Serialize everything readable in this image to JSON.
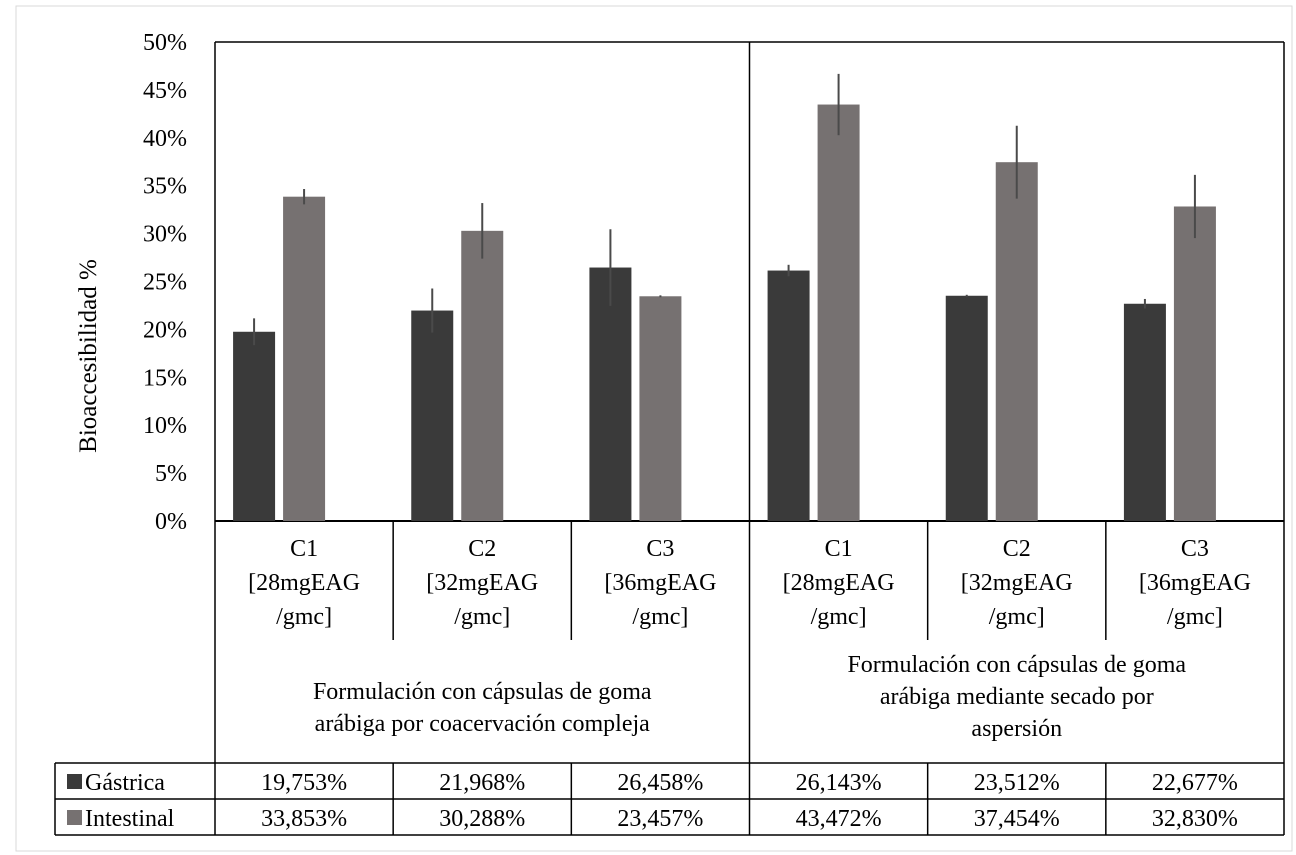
{
  "chart_data": {
    "type": "bar",
    "ylabel": "Bioaccesibilidad %",
    "ylim": [
      0,
      50
    ],
    "yticks": [
      "0%",
      "5%",
      "10%",
      "15%",
      "20%",
      "25%",
      "30%",
      "35%",
      "40%",
      "45%",
      "50%"
    ],
    "grid": false,
    "categories": [
      {
        "line1": "C1",
        "line2": "[28mgEAG",
        "line3": "/gmc]"
      },
      {
        "line1": "C2",
        "line2": "[32mgEAG",
        "line3": "/gmc]"
      },
      {
        "line1": "C3",
        "line2": "[36mgEAG",
        "line3": "/gmc]"
      },
      {
        "line1": "C1",
        "line2": "[28mgEAG",
        "line3": "/gmc]"
      },
      {
        "line1": "C2",
        "line2": "[32mgEAG",
        "line3": "/gmc]"
      },
      {
        "line1": "C3",
        "line2": "[36mgEAG",
        "line3": "/gmc]"
      }
    ],
    "groups": [
      {
        "lines": [
          "Formulación con cápsulas de goma",
          "arábiga por coacervación compleja"
        ]
      },
      {
        "lines": [
          "Formulación con cápsulas de goma",
          "arábiga mediante secado por",
          "aspersión"
        ]
      }
    ],
    "series": [
      {
        "name": "Gástrica",
        "color": "#3a3a3a",
        "values": [
          19.753,
          21.968,
          26.458,
          26.143,
          23.512,
          22.677
        ],
        "errors": [
          1.4,
          2.3,
          4.0,
          0.6,
          0.1,
          0.5
        ],
        "labels": [
          "19,753%",
          "21,968%",
          "26,458%",
          "26,143%",
          "23,512%",
          "22,677%"
        ]
      },
      {
        "name": "Intestinal",
        "color": "#767171",
        "values": [
          33.853,
          30.288,
          23.457,
          43.472,
          37.454,
          32.83
        ],
        "errors": [
          0.8,
          2.9,
          0.1,
          3.2,
          3.8,
          3.3
        ],
        "labels": [
          "33,853%",
          "30,288%",
          "23,457%",
          "43,472%",
          "37,454%",
          "32,830%"
        ]
      }
    ]
  }
}
